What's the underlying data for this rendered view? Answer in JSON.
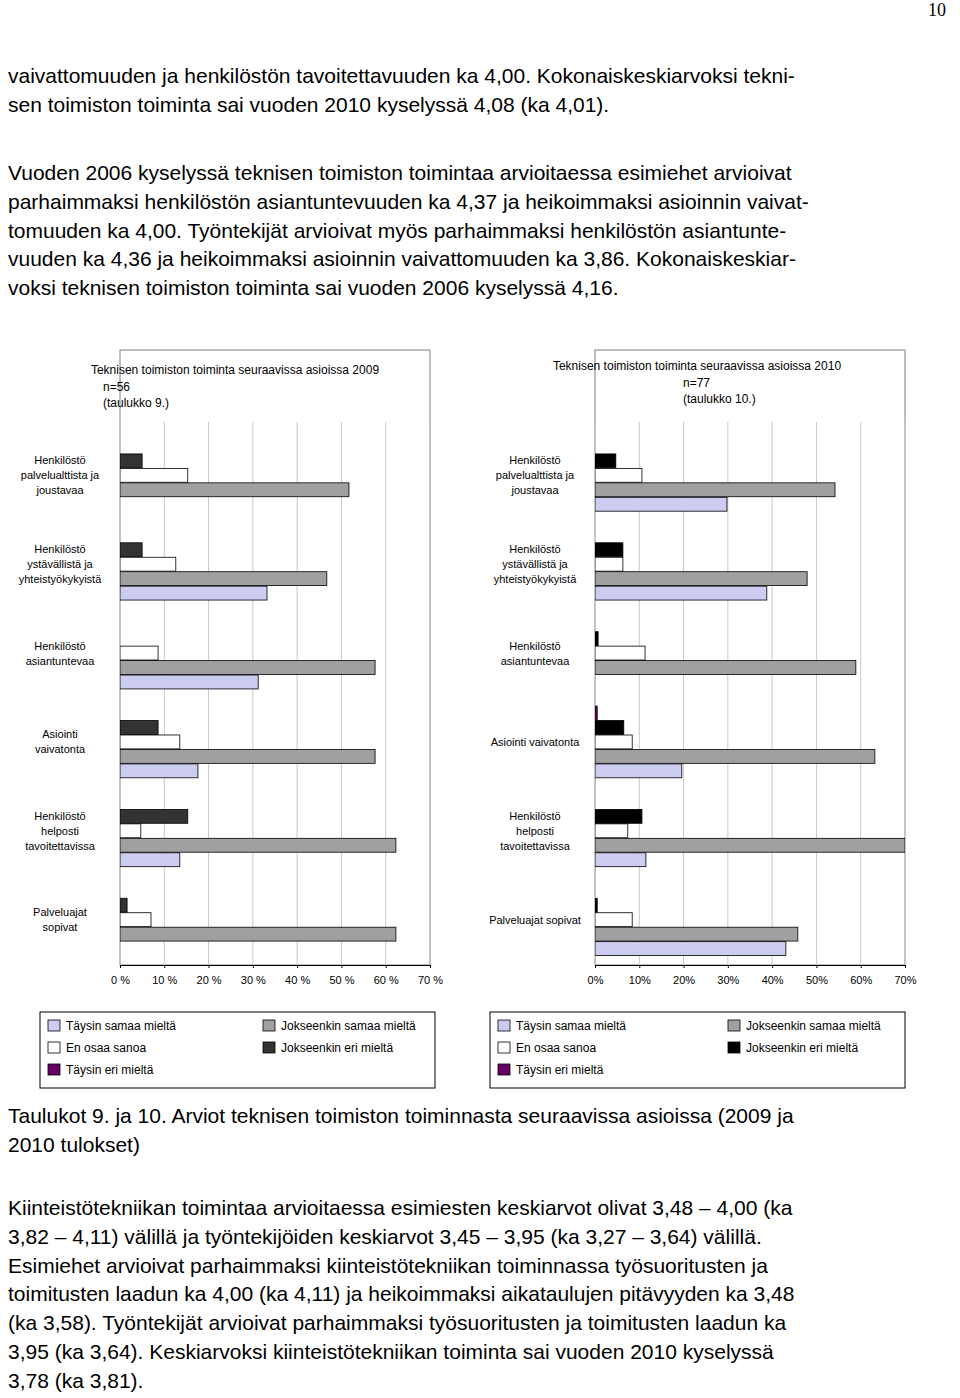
{
  "page_number": "10",
  "text_before": [
    [
      "vaivattomuuden ja henkilöstön tavoitettavuuden ka 4,00. Kokonaiskeskiarvoksi tekni-",
      "sen toimiston toiminta sai vuoden 2010 kyselyssä 4,08 (ka 4,01)."
    ],
    [
      "Vuoden 2006 kyselyssä teknisen toimiston toimintaa arvioitaessa esimiehet arvioivat",
      "parhaimmaksi henkilöstön asiantuntevuuden ka 4,37 ja heikoimmaksi asioinnin vaivat-",
      "tomuuden ka 4,00. Työntekijät arvioivat myös parhaimmaksi henkilöstön asiantunte-",
      "vuuden ka 4,36 ja heikoimmaksi asioinnin vaivattomuuden ka 3,86. Kokonaiskeskiar-",
      "voksi teknisen toimiston toiminta sai vuoden 2006 kyselyssä 4,16."
    ]
  ],
  "caption": [
    "Taulukot 9. ja 10. Arviot teknisen toimiston toiminnasta seuraavissa asioissa (2009 ja",
    "2010 tulokset)"
  ],
  "text_after": [
    [
      "Kiinteistötekniikan toimintaa arvioitaessa esimiesten keskiarvot olivat 3,48 – 4,00 (ka",
      "3,82 – 4,11) välillä ja työntekijöiden keskiarvot 3,45 – 3,95 (ka 3,27 – 3,64) välillä.",
      "Esimiehet arvioivat parhaimmaksi kiinteistötekniikan toiminnassa työsuoritusten ja",
      "toimitusten laadun ka 4,00 (ka 4,11) ja heikoimmaksi aikataulujen pitävyyden ka 3,48",
      "(ka 3,58). Työntekijät arvioivat parhaimmaksi työsuoritusten ja toimitusten laadun ka",
      "3,95 (ka 3,64). Keskiarvoksi kiinteistötekniikan toiminta sai vuoden 2010 kyselyssä",
      "3,78 (ka 3,81)."
    ]
  ],
  "chart_data": [
    {
      "type": "bar",
      "orientation": "horizontal",
      "title": "Teknisen toimiston toiminta seuraavissa asioissa 2009",
      "subtitle": "n=56\n(taulukko 9.)",
      "categories": [
        "Henkilöstö\npalvelualttista ja\njoustavaa",
        "Henkilöstö\nystävällistä ja\nyhteistyökykyistä",
        "Henkilöstö\nasiantuntevaa",
        "Asiointi\nvaivatonta",
        "Henkilöstö\nhelposti\ntavoitettavissa",
        "Palveluajat\nsopivat"
      ],
      "series": [
        {
          "name": "Täysin samaa mieltä",
          "color": "#ccccf0",
          "values": [
            0,
            33.2,
            31.2,
            17.6,
            13.5,
            0
          ]
        },
        {
          "name": "Jokseenkin samaa mieltä",
          "color": "#a0a0a0",
          "values": [
            51.7,
            46.7,
            57.6,
            57.6,
            62.3,
            62.3
          ]
        },
        {
          "name": "En osaa sanoa",
          "color": "#ffffff",
          "values": [
            15.3,
            12.6,
            8.6,
            13.5,
            4.7,
            7.0
          ]
        },
        {
          "name": "Jokseenkin eri mieltä",
          "color": "#333333",
          "values": [
            5.0,
            5.0,
            0,
            8.6,
            15.3,
            1.6
          ]
        },
        {
          "name": "Täysin eri mieltä",
          "color": "#660066",
          "values": [
            0,
            0,
            0,
            0,
            0,
            0
          ]
        }
      ],
      "xlim": [
        0,
        70
      ],
      "xticks": [
        {
          "value": 0,
          "label": "0 %"
        },
        {
          "value": 10,
          "label": "10 %"
        },
        {
          "value": 20,
          "label": "20 %"
        },
        {
          "value": 30,
          "label": "30 %"
        },
        {
          "value": 40,
          "label": "40 %"
        },
        {
          "value": 50,
          "label": "50 %"
        },
        {
          "value": 60,
          "label": "60 %"
        },
        {
          "value": 70,
          "label": "70 %"
        }
      ],
      "grid": true,
      "legend": "bottom"
    },
    {
      "type": "bar",
      "orientation": "horizontal",
      "title": "Teknisen toimiston toiminta seuraavissa asioissa 2010",
      "subtitle": "n=77\n(taulukko 10.)",
      "categories": [
        "Henkilöstö\npalvelualttista ja\njoustavaa",
        "Henkilöstö\nystävällistä ja\nyhteistyökykyistä",
        "Henkilöstö\nasiantuntevaa",
        "Asiointi vaivatonta",
        "Henkilöstö\nhelposti\ntavoitettavissa",
        "Palveluajat sopivat"
      ],
      "series": [
        {
          "name": "Täysin samaa mieltä",
          "color": "#ccccf0",
          "values": [
            29.8,
            38.8,
            0,
            19.6,
            11.5,
            43.1
          ]
        },
        {
          "name": "Jokseenkin samaa mieltä",
          "color": "#a0a0a0",
          "values": [
            54.2,
            47.9,
            58.9,
            63.2,
            70,
            45.8
          ]
        },
        {
          "name": "En osaa sanoa",
          "color": "#ffffff",
          "values": [
            10.6,
            6.3,
            11.3,
            8.4,
            7.4,
            8.4
          ]
        },
        {
          "name": "Jokseenkin eri mieltä",
          "color": "#000000",
          "values": [
            4.7,
            6.3,
            0.7,
            6.5,
            10.6,
            0.5
          ]
        },
        {
          "name": "Täysin eri mieltä",
          "color": "#660066",
          "values": [
            0,
            0,
            0,
            0.5,
            0,
            0
          ]
        }
      ],
      "xlim": [
        0,
        70
      ],
      "xticks": [
        {
          "value": 0,
          "label": "0%"
        },
        {
          "value": 10,
          "label": "10%"
        },
        {
          "value": 20,
          "label": "20%"
        },
        {
          "value": 30,
          "label": "30%"
        },
        {
          "value": 40,
          "label": "40%"
        },
        {
          "value": 50,
          "label": "50%"
        },
        {
          "value": 60,
          "label": "60%"
        },
        {
          "value": 70,
          "label": "70%"
        }
      ],
      "grid": true,
      "legend": "bottom"
    }
  ]
}
